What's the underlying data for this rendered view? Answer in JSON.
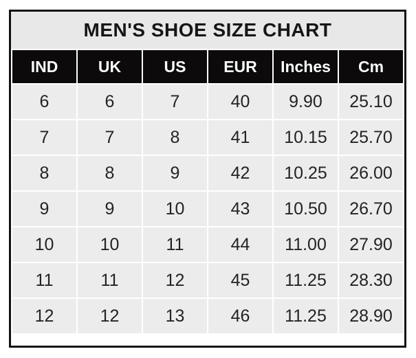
{
  "chart_data": {
    "type": "table",
    "title": "MEN'S SHOE SIZE CHART",
    "columns": [
      "IND",
      "UK",
      "US",
      "EUR",
      "Inches",
      "Cm"
    ],
    "rows": [
      [
        "6",
        "6",
        "7",
        "40",
        "9.90",
        "25.10"
      ],
      [
        "7",
        "7",
        "8",
        "41",
        "10.15",
        "25.70"
      ],
      [
        "8",
        "8",
        "9",
        "42",
        "10.25",
        "26.00"
      ],
      [
        "9",
        "9",
        "10",
        "43",
        "10.50",
        "26.70"
      ],
      [
        "10",
        "10",
        "11",
        "44",
        "11.00",
        "27.90"
      ],
      [
        "11",
        "11",
        "12",
        "45",
        "11.25",
        "28.30"
      ],
      [
        "12",
        "12",
        "13",
        "46",
        "11.25",
        "28.90"
      ]
    ],
    "layout": {
      "grid": "white gaps between cells",
      "header_style": "black background, white bold text",
      "title_position": "top, centered"
    }
  },
  "colors": {
    "page_bg": "#ffffff",
    "frame_border": "#141112",
    "title_bg": "#e9e8e8",
    "header_bg": "#0c0a0b",
    "header_text": "#fbfbfb",
    "cell_bg": "#edecec",
    "cell_text": "#232323"
  }
}
